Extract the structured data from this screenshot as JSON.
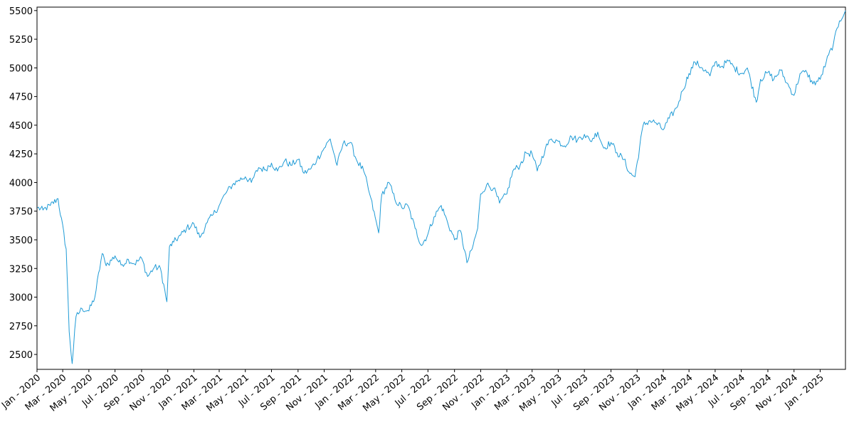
{
  "chart_data": {
    "type": "line",
    "title": "",
    "xlabel": "",
    "ylabel": "",
    "ylim": [
      2370,
      5530
    ],
    "xlim": [
      "2020-01-01",
      "2025-03-01"
    ],
    "grid": false,
    "legend": "none",
    "line_color": "#1f9bd6",
    "y_ticks": [
      2500,
      2750,
      3000,
      3250,
      3500,
      3750,
      4000,
      4250,
      4500,
      4750,
      5000,
      5250,
      5500
    ],
    "x_ticks": [
      {
        "date": "2020-01-01",
        "label": "Jan - 2020"
      },
      {
        "date": "2020-03-01",
        "label": "Mar - 2020"
      },
      {
        "date": "2020-05-01",
        "label": "May - 2020"
      },
      {
        "date": "2020-07-01",
        "label": "Jul - 2020"
      },
      {
        "date": "2020-09-01",
        "label": "Sep - 2020"
      },
      {
        "date": "2020-11-01",
        "label": "Nov - 2020"
      },
      {
        "date": "2021-01-01",
        "label": "Jan - 2021"
      },
      {
        "date": "2021-03-01",
        "label": "Mar - 2021"
      },
      {
        "date": "2021-05-01",
        "label": "May - 2021"
      },
      {
        "date": "2021-07-01",
        "label": "Jul - 2021"
      },
      {
        "date": "2021-09-01",
        "label": "Sep - 2021"
      },
      {
        "date": "2021-11-01",
        "label": "Nov - 2021"
      },
      {
        "date": "2022-01-01",
        "label": "Jan - 2022"
      },
      {
        "date": "2022-03-01",
        "label": "Mar - 2022"
      },
      {
        "date": "2022-05-01",
        "label": "May - 2022"
      },
      {
        "date": "2022-07-01",
        "label": "Jul - 2022"
      },
      {
        "date": "2022-09-01",
        "label": "Sep - 2022"
      },
      {
        "date": "2022-11-01",
        "label": "Nov - 2022"
      },
      {
        "date": "2023-01-01",
        "label": "Jan - 2023"
      },
      {
        "date": "2023-03-01",
        "label": "Mar - 2023"
      },
      {
        "date": "2023-05-01",
        "label": "May - 2023"
      },
      {
        "date": "2023-07-01",
        "label": "Jul - 2023"
      },
      {
        "date": "2023-09-01",
        "label": "Sep - 2023"
      },
      {
        "date": "2023-11-01",
        "label": "Nov - 2023"
      },
      {
        "date": "2024-01-01",
        "label": "Jan - 2024"
      },
      {
        "date": "2024-03-01",
        "label": "Mar - 2024"
      },
      {
        "date": "2024-05-01",
        "label": "May - 2024"
      },
      {
        "date": "2024-07-01",
        "label": "Jul - 2024"
      },
      {
        "date": "2024-09-01",
        "label": "Sep - 2024"
      },
      {
        "date": "2024-11-01",
        "label": "Nov - 2024"
      },
      {
        "date": "2025-01-01",
        "label": "Jan - 2025"
      }
    ],
    "x": [
      "2020-01-02",
      "2020-01-15",
      "2020-02-01",
      "2020-02-19",
      "2020-03-09",
      "2020-03-16",
      "2020-03-23",
      "2020-04-01",
      "2020-04-15",
      "2020-05-01",
      "2020-05-15",
      "2020-06-01",
      "2020-06-08",
      "2020-06-15",
      "2020-07-01",
      "2020-07-15",
      "2020-08-01",
      "2020-08-15",
      "2020-09-01",
      "2020-09-15",
      "2020-10-01",
      "2020-10-15",
      "2020-10-30",
      "2020-11-05",
      "2020-11-15",
      "2020-12-01",
      "2020-12-15",
      "2021-01-01",
      "2021-01-15",
      "2021-02-01",
      "2021-02-15",
      "2021-03-01",
      "2021-03-15",
      "2021-04-01",
      "2021-04-15",
      "2021-05-01",
      "2021-05-15",
      "2021-06-01",
      "2021-06-15",
      "2021-07-01",
      "2021-07-15",
      "2021-08-01",
      "2021-08-15",
      "2021-09-01",
      "2021-09-15",
      "2021-10-01",
      "2021-10-15",
      "2021-11-01",
      "2021-11-15",
      "2021-12-01",
      "2021-12-15",
      "2022-01-01",
      "2022-01-15",
      "2022-02-01",
      "2022-02-15",
      "2022-03-08",
      "2022-03-15",
      "2022-04-01",
      "2022-04-15",
      "2022-05-01",
      "2022-05-15",
      "2022-06-01",
      "2022-06-16",
      "2022-07-01",
      "2022-07-15",
      "2022-08-01",
      "2022-08-16",
      "2022-09-01",
      "2022-09-15",
      "2022-09-30",
      "2022-10-12",
      "2022-10-25",
      "2022-11-01",
      "2022-11-15",
      "2022-12-01",
      "2022-12-15",
      "2023-01-01",
      "2023-01-15",
      "2023-02-01",
      "2023-02-15",
      "2023-03-01",
      "2023-03-13",
      "2023-04-01",
      "2023-04-15",
      "2023-05-01",
      "2023-05-15",
      "2023-06-01",
      "2023-06-15",
      "2023-07-01",
      "2023-07-15",
      "2023-08-01",
      "2023-08-15",
      "2023-09-01",
      "2023-09-15",
      "2023-10-01",
      "2023-10-15",
      "2023-10-27",
      "2023-11-15",
      "2023-12-01",
      "2023-12-15",
      "2024-01-01",
      "2024-01-15",
      "2024-02-01",
      "2024-02-15",
      "2024-03-01",
      "2024-03-15",
      "2024-04-01",
      "2024-04-19",
      "2024-05-01",
      "2024-05-15",
      "2024-06-01",
      "2024-06-15",
      "2024-07-01",
      "2024-07-15",
      "2024-08-05",
      "2024-08-15",
      "2024-09-01",
      "2024-09-15",
      "2024-10-01",
      "2024-10-15",
      "2024-11-01",
      "2024-11-15",
      "2024-12-01",
      "2024-12-15",
      "2025-01-01",
      "2025-01-15",
      "2025-02-01",
      "2025-02-15",
      "2025-03-01"
    ],
    "y": [
      3780,
      3760,
      3800,
      3860,
      3420,
      2700,
      2420,
      2830,
      2900,
      2880,
      3000,
      3380,
      3300,
      3290,
      3360,
      3280,
      3330,
      3290,
      3340,
      3180,
      3260,
      3250,
      2960,
      3440,
      3480,
      3540,
      3600,
      3640,
      3520,
      3650,
      3720,
      3800,
      3900,
      3980,
      4020,
      4050,
      4000,
      4130,
      4110,
      4170,
      4100,
      4190,
      4150,
      4200,
      4080,
      4120,
      4200,
      4300,
      4380,
      4150,
      4340,
      4350,
      4200,
      4100,
      3900,
      3560,
      3890,
      4000,
      3850,
      3780,
      3800,
      3600,
      3450,
      3550,
      3700,
      3800,
      3650,
      3500,
      3580,
      3300,
      3420,
      3600,
      3900,
      3980,
      3950,
      3820,
      3900,
      4100,
      4150,
      4260,
      4250,
      4100,
      4300,
      4380,
      4360,
      4320,
      4400,
      4370,
      4420,
      4360,
      4440,
      4300,
      4350,
      4260,
      4200,
      4080,
      4050,
      4500,
      4540,
      4520,
      4460,
      4560,
      4650,
      4800,
      4950,
      5050,
      5000,
      4930,
      5050,
      5010,
      5060,
      5000,
      4950,
      5000,
      4700,
      4900,
      4960,
      4900,
      4980,
      4870,
      4760,
      4950,
      4960,
      4860,
      4900,
      5050,
      5210,
      5410,
      5500
    ]
  }
}
